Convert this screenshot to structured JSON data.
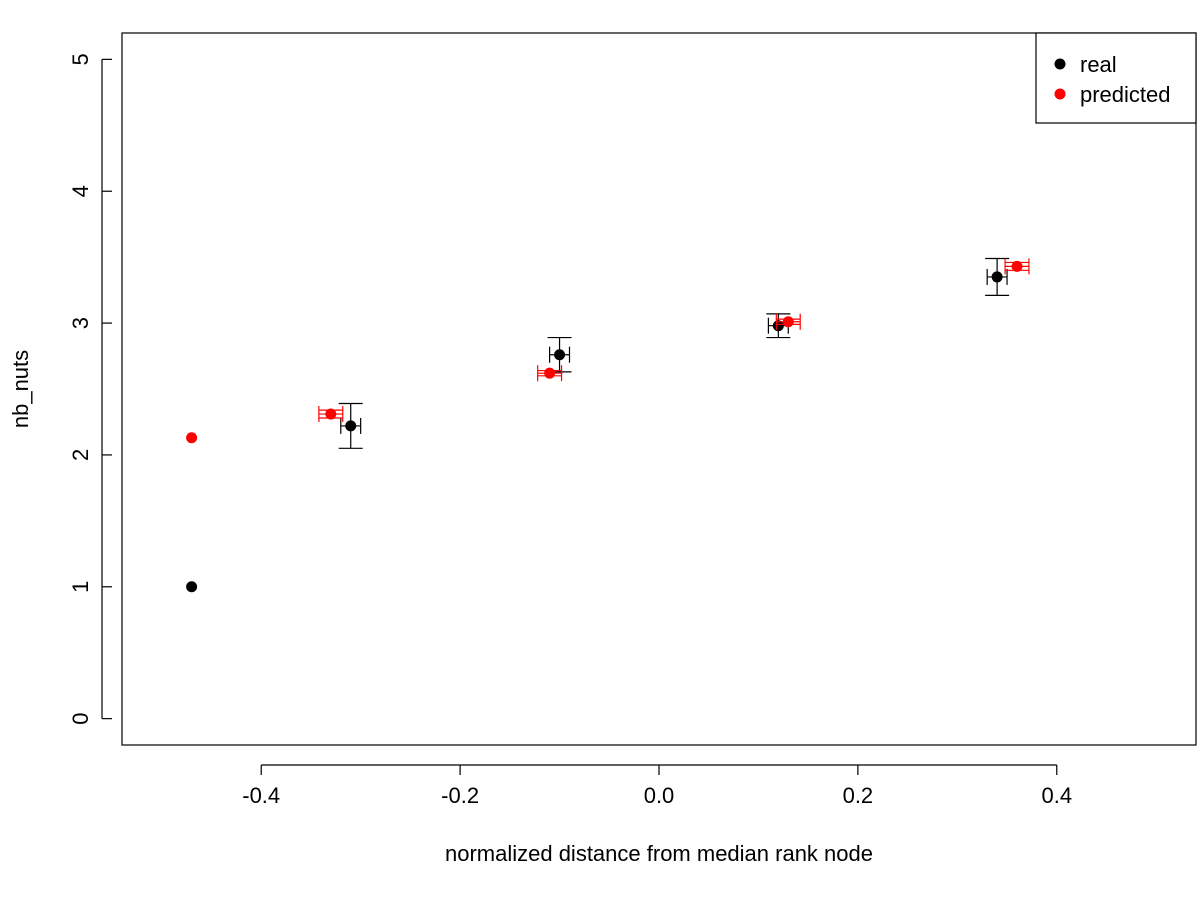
{
  "chart_data": {
    "type": "scatter",
    "title": "",
    "xlabel": "normalized distance from median rank node",
    "ylabel": "nb_nuts",
    "xlim": [
      -0.54,
      0.54
    ],
    "ylim": [
      -0.2,
      5.2
    ],
    "x_ticks": [
      -0.4,
      -0.2,
      0.0,
      0.2,
      0.4
    ],
    "x_tick_labels": [
      "-0.4",
      "-0.2",
      "0.0",
      "0.2",
      "0.4"
    ],
    "y_ticks": [
      0,
      1,
      2,
      3,
      4,
      5
    ],
    "y_tick_labels": [
      "0",
      "1",
      "2",
      "3",
      "4",
      "5"
    ],
    "grid": false,
    "legend_position": "top-right",
    "series": [
      {
        "name": "real",
        "color": "#000000",
        "points": [
          {
            "x": -0.47,
            "y": 1.0,
            "xerr": 0.0,
            "yerr": 0.0
          },
          {
            "x": -0.31,
            "y": 2.22,
            "xerr": 0.01,
            "yerr": 0.17
          },
          {
            "x": -0.1,
            "y": 2.76,
            "xerr": 0.01,
            "yerr": 0.13
          },
          {
            "x": 0.12,
            "y": 2.98,
            "xerr": 0.01,
            "yerr": 0.09
          },
          {
            "x": 0.34,
            "y": 3.35,
            "xerr": 0.01,
            "yerr": 0.14
          }
        ]
      },
      {
        "name": "predicted",
        "color": "#ff0000",
        "points": [
          {
            "x": -0.47,
            "y": 2.13,
            "xerr": 0.0,
            "yerr": 0.0
          },
          {
            "x": -0.33,
            "y": 2.31,
            "xerr": 0.012,
            "yerr": 0.03
          },
          {
            "x": -0.11,
            "y": 2.62,
            "xerr": 0.012,
            "yerr": 0.02
          },
          {
            "x": 0.13,
            "y": 3.01,
            "xerr": 0.012,
            "yerr": 0.02
          },
          {
            "x": 0.36,
            "y": 3.43,
            "xerr": 0.012,
            "yerr": 0.03
          }
        ]
      }
    ]
  }
}
